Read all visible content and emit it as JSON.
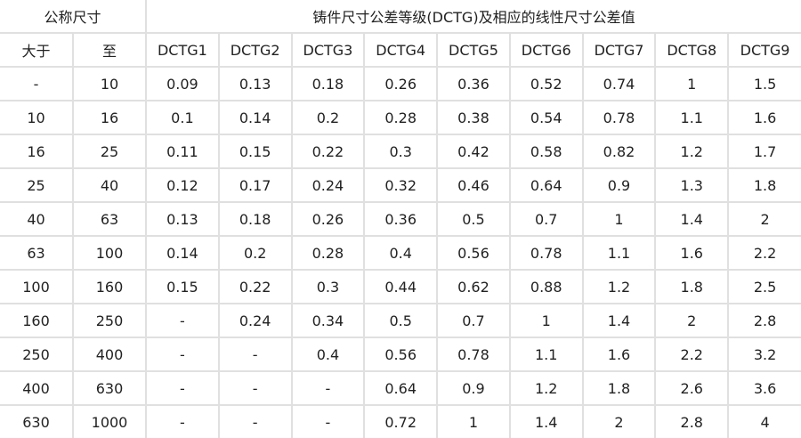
{
  "header": {
    "nominal_size": "公称尺寸",
    "tolerance_title": "铸件尺寸公差等级(DCTG)及相应的线性尺寸公差值",
    "over": "大于",
    "up_to": "至",
    "grades": [
      "DCTG1",
      "DCTG2",
      "DCTG3",
      "DCTG4",
      "DCTG5",
      "DCTG6",
      "DCTG7",
      "DCTG8",
      "DCTG9"
    ]
  },
  "rows": [
    [
      "-",
      "10",
      "0.09",
      "0.13",
      "0.18",
      "0.26",
      "0.36",
      "0.52",
      "0.74",
      "1",
      "1.5"
    ],
    [
      "10",
      "16",
      "0.1",
      "0.14",
      "0.2",
      "0.28",
      "0.38",
      "0.54",
      "0.78",
      "1.1",
      "1.6"
    ],
    [
      "16",
      "25",
      "0.11",
      "0.15",
      "0.22",
      "0.3",
      "0.42",
      "0.58",
      "0.82",
      "1.2",
      "1.7"
    ],
    [
      "25",
      "40",
      "0.12",
      "0.17",
      "0.24",
      "0.32",
      "0.46",
      "0.64",
      "0.9",
      "1.3",
      "1.8"
    ],
    [
      "40",
      "63",
      "0.13",
      "0.18",
      "0.26",
      "0.36",
      "0.5",
      "0.7",
      "1",
      "1.4",
      "2"
    ],
    [
      "63",
      "100",
      "0.14",
      "0.2",
      "0.28",
      "0.4",
      "0.56",
      "0.78",
      "1.1",
      "1.6",
      "2.2"
    ],
    [
      "100",
      "160",
      "0.15",
      "0.22",
      "0.3",
      "0.44",
      "0.62",
      "0.88",
      "1.2",
      "1.8",
      "2.5"
    ],
    [
      "160",
      "250",
      "-",
      "0.24",
      "0.34",
      "0.5",
      "0.7",
      "1",
      "1.4",
      "2",
      "2.8"
    ],
    [
      "250",
      "400",
      "-",
      "-",
      "0.4",
      "0.56",
      "0.78",
      "1.1",
      "1.6",
      "2.2",
      "3.2"
    ],
    [
      "400",
      "630",
      "-",
      "-",
      "-",
      "0.64",
      "0.9",
      "1.2",
      "1.8",
      "2.6",
      "3.6"
    ],
    [
      "630",
      "1000",
      "-",
      "-",
      "-",
      "0.72",
      "1",
      "1.4",
      "2",
      "2.8",
      "4"
    ]
  ]
}
